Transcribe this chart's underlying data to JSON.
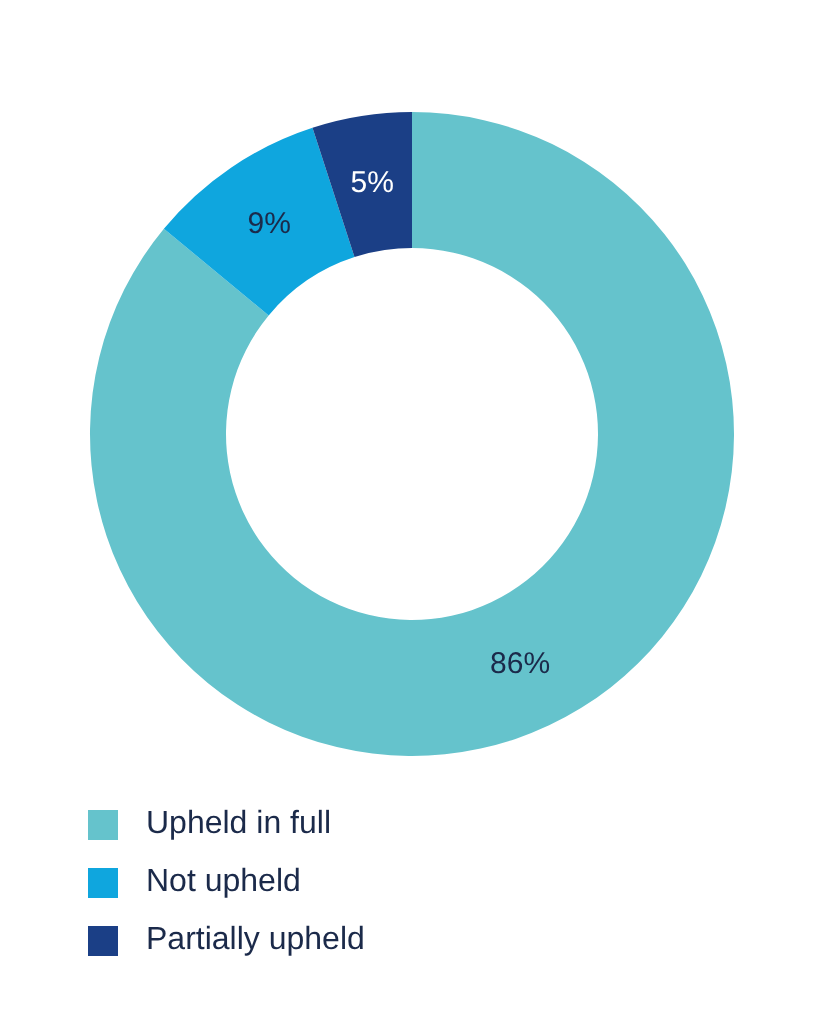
{
  "chart_data": {
    "type": "donut",
    "categories": [
      "Upheld in full",
      "Not upheld",
      "Partially upheld"
    ],
    "values": [
      86,
      9,
      5
    ],
    "colors": [
      "#65c3cc",
      "#0fa6de",
      "#1b3f86"
    ],
    "value_labels": [
      "86%",
      "9%",
      "5%"
    ],
    "legend": "bottom left"
  }
}
